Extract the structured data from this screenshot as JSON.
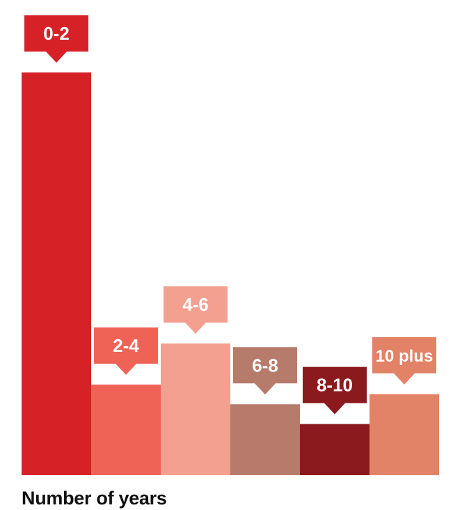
{
  "chart_data": {
    "type": "bar",
    "title": "",
    "xlabel": "Number of years",
    "ylabel": "",
    "categories": [
      "0-2",
      "2-4",
      "4-6",
      "6-8",
      "8-10",
      "10 plus"
    ],
    "values": [
      100,
      22.5,
      32.7,
      17.6,
      12.7,
      20.1
    ],
    "ylim": [
      0,
      100
    ],
    "colors": [
      "#d62226",
      "#ef6357",
      "#f4a090",
      "#b67b6b",
      "#8b1a1e",
      "#e28266"
    ],
    "grid": false,
    "legend": "none"
  }
}
